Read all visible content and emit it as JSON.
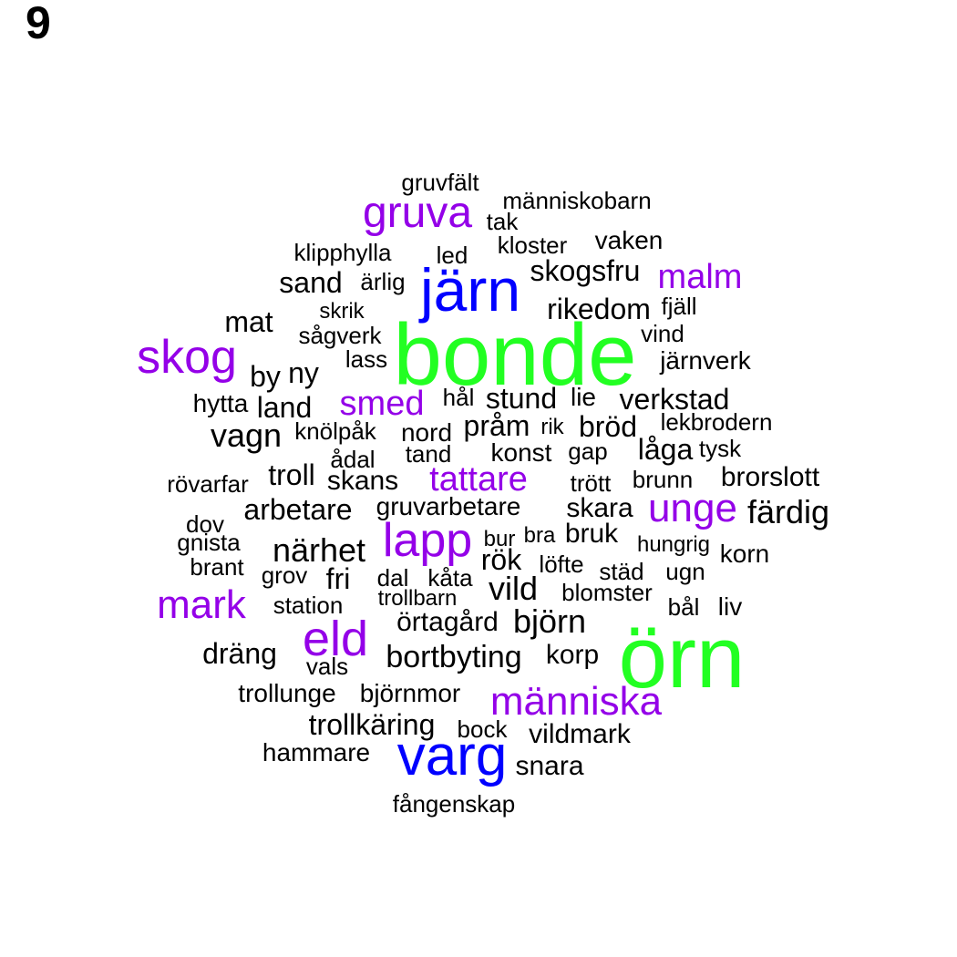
{
  "panel_number": "9",
  "colors": {
    "tier1": "#22ff22",
    "tier2": "#0000ff",
    "tier3": "#9400e8",
    "tier4": "#000000"
  },
  "words": [
    {
      "text": "bonde",
      "tier": "tier1"
    },
    {
      "text": "örn",
      "tier": "tier1"
    },
    {
      "text": "järn",
      "tier": "tier2"
    },
    {
      "text": "varg",
      "tier": "tier2"
    },
    {
      "text": "gruva",
      "tier": "tier3"
    },
    {
      "text": "malm",
      "tier": "tier3"
    },
    {
      "text": "skog",
      "tier": "tier3"
    },
    {
      "text": "smed",
      "tier": "tier3"
    },
    {
      "text": "tattare",
      "tier": "tier3"
    },
    {
      "text": "unge",
      "tier": "tier3"
    },
    {
      "text": "lapp",
      "tier": "tier3"
    },
    {
      "text": "mark",
      "tier": "tier3"
    },
    {
      "text": "eld",
      "tier": "tier3"
    },
    {
      "text": "människa",
      "tier": "tier3"
    },
    {
      "text": "gruvfält",
      "tier": "tier4"
    },
    {
      "text": "människobarn",
      "tier": "tier4"
    },
    {
      "text": "tak",
      "tier": "tier4"
    },
    {
      "text": "klipphylla",
      "tier": "tier4"
    },
    {
      "text": "led",
      "tier": "tier4"
    },
    {
      "text": "kloster",
      "tier": "tier4"
    },
    {
      "text": "vaken",
      "tier": "tier4"
    },
    {
      "text": "sand",
      "tier": "tier4"
    },
    {
      "text": "ärlig",
      "tier": "tier4"
    },
    {
      "text": "skogsfru",
      "tier": "tier4"
    },
    {
      "text": "mat",
      "tier": "tier4"
    },
    {
      "text": "skrik",
      "tier": "tier4"
    },
    {
      "text": "rikedom",
      "tier": "tier4"
    },
    {
      "text": "fjäll",
      "tier": "tier4"
    },
    {
      "text": "sågverk",
      "tier": "tier4"
    },
    {
      "text": "vind",
      "tier": "tier4"
    },
    {
      "text": "lass",
      "tier": "tier4"
    },
    {
      "text": "järnverk",
      "tier": "tier4"
    },
    {
      "text": "by",
      "tier": "tier4"
    },
    {
      "text": "ny",
      "tier": "tier4"
    },
    {
      "text": "hytta",
      "tier": "tier4"
    },
    {
      "text": "land",
      "tier": "tier4"
    },
    {
      "text": "hål",
      "tier": "tier4"
    },
    {
      "text": "stund",
      "tier": "tier4"
    },
    {
      "text": "lie",
      "tier": "tier4"
    },
    {
      "text": "verkstad",
      "tier": "tier4"
    },
    {
      "text": "vagn",
      "tier": "tier4"
    },
    {
      "text": "knölpåk",
      "tier": "tier4"
    },
    {
      "text": "nord",
      "tier": "tier4"
    },
    {
      "text": "pråm",
      "tier": "tier4"
    },
    {
      "text": "rik",
      "tier": "tier4"
    },
    {
      "text": "bröd",
      "tier": "tier4"
    },
    {
      "text": "lekbrodern",
      "tier": "tier4"
    },
    {
      "text": "ådal",
      "tier": "tier4"
    },
    {
      "text": "tand",
      "tier": "tier4"
    },
    {
      "text": "konst",
      "tier": "tier4"
    },
    {
      "text": "gap",
      "tier": "tier4"
    },
    {
      "text": "låga",
      "tier": "tier4"
    },
    {
      "text": "tysk",
      "tier": "tier4"
    },
    {
      "text": "rövarfar",
      "tier": "tier4"
    },
    {
      "text": "troll",
      "tier": "tier4"
    },
    {
      "text": "skans",
      "tier": "tier4"
    },
    {
      "text": "trött",
      "tier": "tier4"
    },
    {
      "text": "brunn",
      "tier": "tier4"
    },
    {
      "text": "brorslott",
      "tier": "tier4"
    },
    {
      "text": "arbetare",
      "tier": "tier4"
    },
    {
      "text": "gruvarbetare",
      "tier": "tier4"
    },
    {
      "text": "skara",
      "tier": "tier4"
    },
    {
      "text": "färdig",
      "tier": "tier4"
    },
    {
      "text": "dov",
      "tier": "tier4"
    },
    {
      "text": "bur",
      "tier": "tier4"
    },
    {
      "text": "bra",
      "tier": "tier4"
    },
    {
      "text": "bruk",
      "tier": "tier4"
    },
    {
      "text": "gnista",
      "tier": "tier4"
    },
    {
      "text": "närhet",
      "tier": "tier4"
    },
    {
      "text": "hungrig",
      "tier": "tier4"
    },
    {
      "text": "korn",
      "tier": "tier4"
    },
    {
      "text": "rök",
      "tier": "tier4"
    },
    {
      "text": "löfte",
      "tier": "tier4"
    },
    {
      "text": "brant",
      "tier": "tier4"
    },
    {
      "text": "grov",
      "tier": "tier4"
    },
    {
      "text": "fri",
      "tier": "tier4"
    },
    {
      "text": "dal",
      "tier": "tier4"
    },
    {
      "text": "kåta",
      "tier": "tier4"
    },
    {
      "text": "städ",
      "tier": "tier4"
    },
    {
      "text": "ugn",
      "tier": "tier4"
    },
    {
      "text": "vild",
      "tier": "tier4"
    },
    {
      "text": "trollbarn",
      "tier": "tier4"
    },
    {
      "text": "blomster",
      "tier": "tier4"
    },
    {
      "text": "station",
      "tier": "tier4"
    },
    {
      "text": "bål",
      "tier": "tier4"
    },
    {
      "text": "liv",
      "tier": "tier4"
    },
    {
      "text": "örtagård",
      "tier": "tier4"
    },
    {
      "text": "björn",
      "tier": "tier4"
    },
    {
      "text": "dräng",
      "tier": "tier4"
    },
    {
      "text": "bortbyting",
      "tier": "tier4"
    },
    {
      "text": "korp",
      "tier": "tier4"
    },
    {
      "text": "vals",
      "tier": "tier4"
    },
    {
      "text": "trollunge",
      "tier": "tier4"
    },
    {
      "text": "björnmor",
      "tier": "tier4"
    },
    {
      "text": "trollkäring",
      "tier": "tier4"
    },
    {
      "text": "bock",
      "tier": "tier4"
    },
    {
      "text": "vildmark",
      "tier": "tier4"
    },
    {
      "text": "hammare",
      "tier": "tier4"
    },
    {
      "text": "snara",
      "tier": "tier4"
    },
    {
      "text": "fångenskap",
      "tier": "tier4"
    }
  ]
}
